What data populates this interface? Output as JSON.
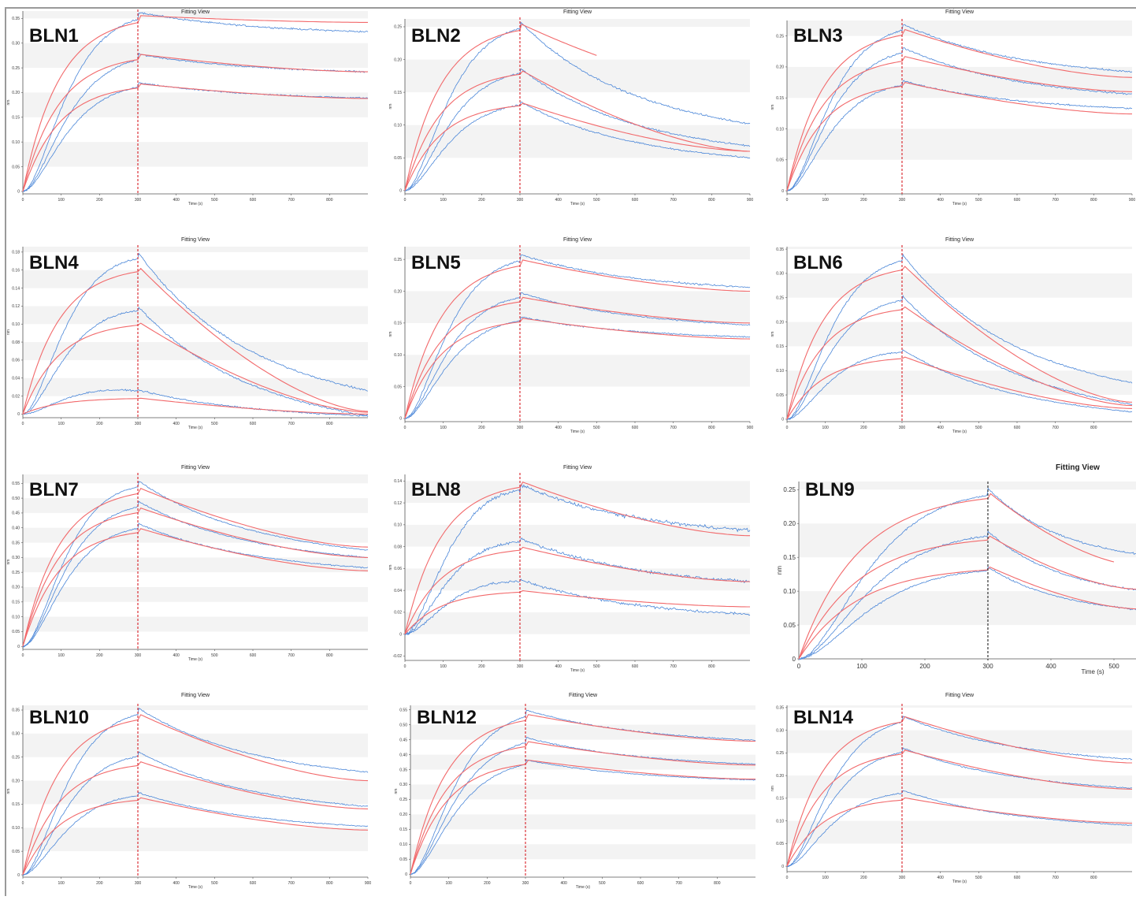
{
  "chart_data": [
    {
      "type": "line",
      "label": "BLN1",
      "title": "Fitting View",
      "ylabel": "nm",
      "xlabel": "Time (s)",
      "xticks": [
        0,
        100,
        200,
        300,
        400,
        500,
        600,
        700,
        800
      ],
      "yticks": [
        0,
        0.05,
        0.1,
        0.15,
        0.2,
        0.25,
        0.3,
        0.35
      ],
      "xlim": [
        0,
        900
      ],
      "ylim": [
        -0.005,
        0.365
      ],
      "grid": "horizontal bands",
      "dissociation_start": 300,
      "traces": [
        {
          "a": 0.356,
          "b": 0.342,
          "at": 0.363,
          "e": 0.323,
          "c": 0.01,
          "s": 0.0025
        },
        {
          "a": 0.278,
          "b": 0.242,
          "at": 0.278,
          "e": 0.242,
          "c": 0.005,
          "s": 0.0022
        },
        {
          "a": 0.218,
          "b": 0.188,
          "at": 0.22,
          "e": 0.189,
          "c": 0.004,
          "s": 0.002
        }
      ]
    },
    {
      "type": "line",
      "label": "BLN2",
      "title": "Fitting View",
      "ylabel": "nm",
      "xlabel": "Time (s)",
      "xticks": [
        0,
        100,
        200,
        300,
        400,
        500,
        600,
        700,
        800,
        900
      ],
      "yticks": [
        0,
        0.05,
        0.1,
        0.15,
        0.2,
        0.25
      ],
      "xlim": [
        0,
        900
      ],
      "ylim": [
        -0.005,
        0.262
      ],
      "grid": "horizontal bands",
      "dissociation_start": 300,
      "traces": [
        {
          "a": 0.255,
          "b": 0.153,
          "at": 0.258,
          "e": 0.102,
          "c": 0.008,
          "s": 0.002,
          "fitEnd": 500
        },
        {
          "a": 0.185,
          "b": 0.06,
          "at": 0.187,
          "e": 0.068,
          "c": 0.004,
          "s": 0.0018
        },
        {
          "a": 0.135,
          "b": 0.06,
          "at": 0.136,
          "e": 0.05,
          "c": 0.003,
          "s": 0.0016
        }
      ]
    },
    {
      "type": "line",
      "label": "BLN3",
      "title": "Fitting View",
      "ylabel": "nm",
      "xlabel": "Time (s)",
      "xticks": [
        0,
        100,
        200,
        300,
        400,
        500,
        600,
        700,
        800,
        900
      ],
      "yticks": [
        0,
        0.05,
        0.1,
        0.15,
        0.2,
        0.25
      ],
      "xlim": [
        0,
        900
      ],
      "ylim": [
        -0.005,
        0.275
      ],
      "grid": "horizontal bands",
      "dissociation_start": 300,
      "traces": [
        {
          "a": 0.262,
          "b": 0.183,
          "at": 0.27,
          "e": 0.192,
          "c": 0.009,
          "s": 0.0022
        },
        {
          "a": 0.218,
          "b": 0.16,
          "at": 0.232,
          "e": 0.156,
          "c": 0.006,
          "s": 0.002
        },
        {
          "a": 0.176,
          "b": 0.124,
          "at": 0.178,
          "e": 0.133,
          "c": 0.004,
          "s": 0.0018
        }
      ]
    },
    {
      "type": "line",
      "label": "BLN4",
      "title": "Fitting View",
      "ylabel": "nm",
      "xlabel": "Time (s)",
      "xticks": [
        0,
        100,
        200,
        300,
        400,
        500,
        600,
        700,
        800
      ],
      "yticks": [
        0,
        0.02,
        0.04,
        0.06,
        0.08,
        0.1,
        0.12,
        0.14,
        0.16,
        0.18
      ],
      "xlim": [
        0,
        900
      ],
      "ylim": [
        -0.004,
        0.186
      ],
      "grid": "horizontal bands",
      "dissociation_start": 300,
      "traces": [
        {
          "a": 0.165,
          "b": 0.003,
          "at": 0.18,
          "e": 0.026,
          "c": 0.01,
          "s": 0.0015
        },
        {
          "a": 0.103,
          "b": 0.002,
          "at": 0.12,
          "e": -0.002,
          "c": 0.006,
          "s": 0.0015
        },
        {
          "a": 0.018,
          "b": 0.0,
          "at": 0.027,
          "e": -0.002,
          "c": 0.006,
          "s": 0.0012
        }
      ]
    },
    {
      "type": "line",
      "label": "BLN5",
      "title": "Fitting View",
      "ylabel": "nm",
      "xlabel": "Time (s)",
      "xticks": [
        0,
        100,
        200,
        300,
        400,
        500,
        600,
        700,
        800,
        900
      ],
      "yticks": [
        0,
        0.05,
        0.1,
        0.15,
        0.2,
        0.25
      ],
      "xlim": [
        0,
        900
      ],
      "ylim": [
        -0.005,
        0.27
      ],
      "grid": "horizontal bands",
      "dissociation_start": 300,
      "traces": [
        {
          "a": 0.25,
          "b": 0.2,
          "at": 0.258,
          "e": 0.206,
          "c": 0.01,
          "s": 0.002
        },
        {
          "a": 0.191,
          "b": 0.15,
          "at": 0.198,
          "e": 0.147,
          "c": 0.007,
          "s": 0.0018
        },
        {
          "a": 0.158,
          "b": 0.125,
          "at": 0.16,
          "e": 0.128,
          "c": 0.004,
          "s": 0.0016
        }
      ]
    },
    {
      "type": "line",
      "label": "BLN6",
      "title": "Fitting View",
      "ylabel": "nm",
      "xlabel": "Time (s)",
      "xticks": [
        0,
        100,
        200,
        300,
        400,
        500,
        600,
        700,
        800
      ],
      "yticks": [
        0,
        0.05,
        0.1,
        0.15,
        0.2,
        0.25,
        0.3,
        0.35
      ],
      "xlim": [
        0,
        900
      ],
      "ylim": [
        -0.005,
        0.355
      ],
      "grid": "horizontal bands",
      "dissociation_start": 300,
      "traces": [
        {
          "a": 0.32,
          "b": 0.035,
          "at": 0.34,
          "e": 0.075,
          "c": 0.012,
          "s": 0.002
        },
        {
          "a": 0.235,
          "b": 0.028,
          "at": 0.255,
          "e": 0.03,
          "c": 0.01,
          "s": 0.002
        },
        {
          "a": 0.13,
          "b": 0.022,
          "at": 0.144,
          "e": 0.015,
          "c": 0.008,
          "s": 0.0018
        }
      ]
    },
    {
      "type": "line",
      "label": "BLN7",
      "title": "Fitting View",
      "ylabel": "nm",
      "xlabel": "Time (s)",
      "xticks": [
        0,
        100,
        200,
        300,
        400,
        500,
        600,
        700,
        800
      ],
      "yticks": [
        0,
        0.05,
        0.1,
        0.15,
        0.2,
        0.25,
        0.3,
        0.35,
        0.4,
        0.45,
        0.5,
        0.55
      ],
      "xlim": [
        0,
        900
      ],
      "ylim": [
        -0.01,
        0.58
      ],
      "grid": "horizontal bands",
      "dissociation_start": 300,
      "traces": [
        {
          "a": 0.537,
          "b": 0.335,
          "at": 0.56,
          "e": 0.325,
          "c": 0.03,
          "s": 0.003
        },
        {
          "a": 0.47,
          "b": 0.3,
          "at": 0.49,
          "e": 0.3,
          "c": 0.02,
          "s": 0.003
        },
        {
          "a": 0.4,
          "b": 0.255,
          "at": 0.415,
          "e": 0.265,
          "c": 0.015,
          "s": 0.003
        }
      ]
    },
    {
      "type": "line",
      "label": "BLN8",
      "title": "Fitting View",
      "ylabel": "nm",
      "xlabel": "Time (s)",
      "xticks": [
        0,
        100,
        200,
        300,
        400,
        500,
        600,
        700,
        800
      ],
      "yticks": [
        -0.02,
        0,
        0.02,
        0.04,
        0.06,
        0.08,
        0.1,
        0.12,
        0.14
      ],
      "xlim": [
        0,
        900
      ],
      "ylim": [
        -0.024,
        0.146
      ],
      "grid": "horizontal bands",
      "dissociation_start": 300,
      "traces": [
        {
          "a": 0.14,
          "b": 0.09,
          "at": 0.137,
          "e": 0.095,
          "c": 0.008,
          "s": 0.0022
        },
        {
          "a": 0.08,
          "b": 0.048,
          "at": 0.088,
          "e": 0.048,
          "c": 0.006,
          "s": 0.002
        },
        {
          "a": 0.04,
          "b": 0.025,
          "at": 0.05,
          "e": 0.018,
          "c": 0.005,
          "s": 0.0018
        }
      ]
    },
    {
      "type": "line",
      "label": "BLN9",
      "title": "Fitting View",
      "ylabel": "nm",
      "xlabel": "Time (s)",
      "xticks": [
        0,
        100,
        200,
        300,
        400,
        500
      ],
      "yticks": [
        0,
        0.05,
        0.1,
        0.15,
        0.2,
        0.25
      ],
      "xlim": [
        0,
        535
      ],
      "ylim": [
        0,
        0.262
      ],
      "grid": "horizontal bands",
      "dissociation_start": 300,
      "traces": [
        {
          "a": 0.247,
          "b": 0.138,
          "at": 0.252,
          "e": 0.155,
          "c": 0.01,
          "s": 0.002,
          "fitEnd": 500
        },
        {
          "a": 0.183,
          "b": 0.103,
          "at": 0.189,
          "e": 0.102,
          "c": 0.007,
          "s": 0.0018
        },
        {
          "a": 0.137,
          "b": 0.074,
          "at": 0.136,
          "e": 0.073,
          "c": 0.005,
          "s": 0.0016
        }
      ]
    },
    {
      "type": "line",
      "label": "BLN10",
      "title": "Fitting View",
      "ylabel": "nm",
      "xlabel": "Time (s)",
      "xticks": [
        0,
        100,
        200,
        300,
        400,
        500,
        600,
        700,
        800,
        900
      ],
      "yticks": [
        0,
        0.05,
        0.1,
        0.15,
        0.2,
        0.25,
        0.3,
        0.35
      ],
      "xlim": [
        0,
        900
      ],
      "ylim": [
        -0.005,
        0.36
      ],
      "grid": "horizontal bands",
      "dissociation_start": 300,
      "traces": [
        {
          "a": 0.343,
          "b": 0.2,
          "at": 0.355,
          "e": 0.218,
          "c": 0.012,
          "s": 0.002
        },
        {
          "a": 0.242,
          "b": 0.14,
          "at": 0.262,
          "e": 0.145,
          "c": 0.01,
          "s": 0.002
        },
        {
          "a": 0.165,
          "b": 0.095,
          "at": 0.175,
          "e": 0.103,
          "c": 0.006,
          "s": 0.0018
        }
      ]
    },
    {
      "type": "line",
      "label": "BLN12",
      "title": "Fitting View",
      "ylabel": "nm",
      "xlabel": "Time (s)",
      "xticks": [
        0,
        100,
        200,
        300,
        400,
        500,
        600,
        700,
        800
      ],
      "yticks": [
        0,
        0.05,
        0.1,
        0.15,
        0.2,
        0.25,
        0.3,
        0.35,
        0.4,
        0.45,
        0.5,
        0.55
      ],
      "xlim": [
        0,
        900
      ],
      "ylim": [
        -0.01,
        0.565
      ],
      "grid": "horizontal bands",
      "dissociation_start": 300,
      "traces": [
        {
          "a": 0.536,
          "b": 0.445,
          "at": 0.55,
          "e": 0.448,
          "c": 0.01,
          "s": 0.003
        },
        {
          "a": 0.445,
          "b": 0.365,
          "at": 0.458,
          "e": 0.368,
          "c": 0.006,
          "s": 0.0028
        },
        {
          "a": 0.383,
          "b": 0.318,
          "at": 0.383,
          "e": 0.315,
          "c": 0.003,
          "s": 0.0025
        }
      ]
    },
    {
      "type": "line",
      "label": "BLN14",
      "title": "Fitting View",
      "ylabel": "nm",
      "xlabel": "Time (s)",
      "xticks": [
        0,
        100,
        200,
        300,
        400,
        500,
        600,
        700,
        800
      ],
      "yticks": [
        0,
        0.05,
        0.1,
        0.15,
        0.2,
        0.25,
        0.3,
        0.35
      ],
      "xlim": [
        0,
        900
      ],
      "ylim": [
        -0.012,
        0.355
      ],
      "grid": "horizontal bands",
      "dissociation_start": 300,
      "traces": [
        {
          "a": 0.332,
          "b": 0.228,
          "at": 0.332,
          "e": 0.236,
          "c": 0.008,
          "s": 0.002
        },
        {
          "a": 0.258,
          "b": 0.17,
          "at": 0.262,
          "e": 0.172,
          "c": 0.006,
          "s": 0.002
        },
        {
          "a": 0.152,
          "b": 0.095,
          "at": 0.168,
          "e": 0.09,
          "c": 0.005,
          "s": 0.0018
        }
      ]
    }
  ],
  "colors": {
    "fit": "#f2696b",
    "data": "#4a86d8",
    "marker": "#d81f26",
    "band": "#f3f3f3",
    "axis": "#555555"
  }
}
